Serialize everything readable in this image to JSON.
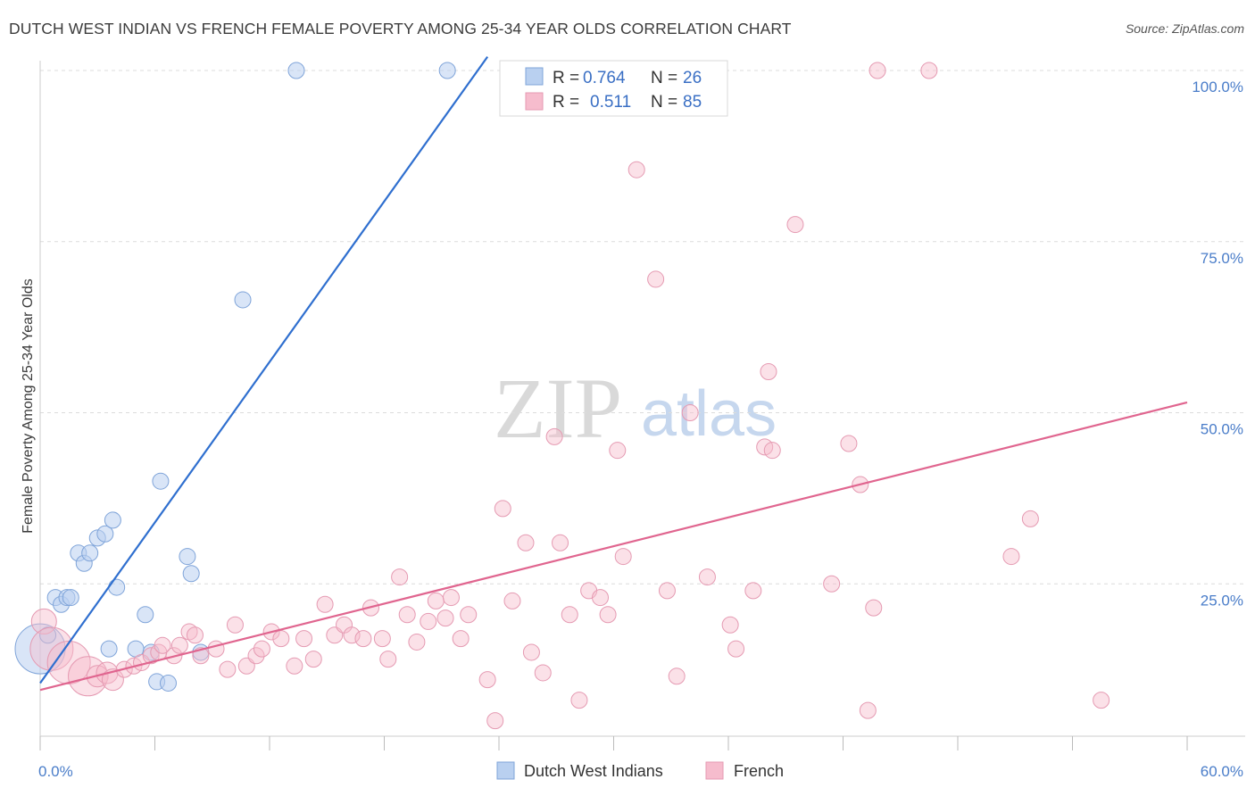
{
  "title": "DUTCH WEST INDIAN VS FRENCH FEMALE POVERTY AMONG 25-34 YEAR OLDS CORRELATION CHART",
  "source": "Source: ZipAtlas.com",
  "watermark": {
    "zip": "ZIP",
    "atlas": "atlas"
  },
  "colors": {
    "blue": "#4a7dc9",
    "blue_fill": "#b9d0f0",
    "pink": "#e0658f",
    "pink_fill": "#f6bccd",
    "grid": "#dddddd"
  },
  "legend": {
    "rows": [
      {
        "r_label": "R =",
        "r_value": "0.764",
        "n_label": "N =",
        "n_value": "26"
      },
      {
        "r_label": "R =",
        "r_value": "0.511",
        "n_label": "N =",
        "n_value": "85"
      }
    ]
  },
  "bottom_legend": [
    "Dutch West Indians",
    "French"
  ],
  "chart_data": {
    "type": "scatter",
    "title": "DUTCH WEST INDIAN VS FRENCH FEMALE POVERTY AMONG 25-34 YEAR OLDS CORRELATION CHART",
    "xlabel": "",
    "ylabel": "Female Poverty Among 25-34 Year Olds",
    "xlim": [
      0,
      60
    ],
    "ylim": [
      0,
      105
    ],
    "x_tick_labels": [
      "0.0%",
      "60.0%"
    ],
    "y_tick_labels": [
      "25.0%",
      "50.0%",
      "75.0%",
      "100.0%"
    ],
    "y_ticks": [
      25,
      50,
      75,
      100
    ],
    "grid": true,
    "legend_placement": "top-center",
    "series": [
      {
        "name": "Dutch West Indians",
        "color": "#4a7dc9",
        "trend": {
          "x": [
            0,
            23.4
          ],
          "y": [
            10.5,
            102
          ]
        },
        "points": [
          [
            0.0,
            15.5,
            28
          ],
          [
            0.4,
            17.5,
            9
          ],
          [
            0.8,
            23.0,
            9
          ],
          [
            1.1,
            22.0,
            9
          ],
          [
            1.4,
            23.0,
            9
          ],
          [
            1.6,
            23.0,
            9
          ],
          [
            2.0,
            29.5,
            9
          ],
          [
            2.3,
            28.0,
            9
          ],
          [
            2.6,
            29.5,
            9
          ],
          [
            3.0,
            31.7,
            9
          ],
          [
            3.4,
            32.3,
            9
          ],
          [
            3.8,
            34.3,
            9
          ],
          [
            4.0,
            24.5,
            9
          ],
          [
            3.6,
            15.5,
            9
          ],
          [
            5.0,
            15.5,
            9
          ],
          [
            5.5,
            20.5,
            9
          ],
          [
            5.8,
            15.0,
            9
          ],
          [
            6.1,
            10.7,
            9
          ],
          [
            6.3,
            40.0,
            9
          ],
          [
            6.7,
            10.5,
            9
          ],
          [
            7.7,
            29.0,
            9
          ],
          [
            7.9,
            26.5,
            9
          ],
          [
            8.4,
            15.0,
            9
          ],
          [
            10.6,
            66.5,
            9
          ],
          [
            13.4,
            100.0,
            9
          ],
          [
            21.3,
            100.0,
            9
          ]
        ]
      },
      {
        "name": "French",
        "color": "#e0658f",
        "trend": {
          "x": [
            0,
            60
          ],
          "y": [
            9.5,
            51.5
          ]
        },
        "points": [
          [
            0.2,
            19.5,
            14
          ],
          [
            0.6,
            15.5,
            24
          ],
          [
            1.5,
            13.5,
            24
          ],
          [
            2.5,
            11.5,
            22
          ],
          [
            3.0,
            11.5,
            12
          ],
          [
            3.5,
            12.0,
            12
          ],
          [
            3.8,
            11.0,
            12
          ],
          [
            4.4,
            12.5,
            9
          ],
          [
            4.9,
            13.0,
            9
          ],
          [
            5.3,
            13.5,
            9
          ],
          [
            5.8,
            14.5,
            9
          ],
          [
            6.2,
            15.0,
            9
          ],
          [
            6.4,
            16.0,
            9
          ],
          [
            7.0,
            14.5,
            9
          ],
          [
            7.3,
            16.0,
            9
          ],
          [
            7.8,
            18.0,
            9
          ],
          [
            8.1,
            17.5,
            9
          ],
          [
            8.4,
            14.5,
            9
          ],
          [
            9.2,
            15.5,
            9
          ],
          [
            9.8,
            12.5,
            9
          ],
          [
            10.2,
            19.0,
            9
          ],
          [
            10.8,
            13.0,
            9
          ],
          [
            11.3,
            14.5,
            9
          ],
          [
            11.6,
            15.5,
            9
          ],
          [
            12.1,
            18.0,
            9
          ],
          [
            12.6,
            17.0,
            9
          ],
          [
            13.3,
            13.0,
            9
          ],
          [
            13.8,
            17.0,
            9
          ],
          [
            14.3,
            14.0,
            9
          ],
          [
            14.9,
            22.0,
            9
          ],
          [
            15.4,
            17.5,
            9
          ],
          [
            15.9,
            19.0,
            9
          ],
          [
            16.3,
            17.5,
            9
          ],
          [
            16.9,
            17.0,
            9
          ],
          [
            17.3,
            21.5,
            9
          ],
          [
            17.9,
            17.0,
            9
          ],
          [
            18.2,
            14.0,
            9
          ],
          [
            18.8,
            26.0,
            9
          ],
          [
            19.2,
            20.5,
            9
          ],
          [
            19.7,
            16.5,
            9
          ],
          [
            20.3,
            19.5,
            9
          ],
          [
            20.7,
            22.5,
            9
          ],
          [
            21.2,
            20.0,
            9
          ],
          [
            21.5,
            23.0,
            9
          ],
          [
            22.0,
            17.0,
            9
          ],
          [
            22.4,
            20.5,
            9
          ],
          [
            23.4,
            11.0,
            9
          ],
          [
            23.8,
            5.0,
            9
          ],
          [
            24.2,
            36.0,
            9
          ],
          [
            24.7,
            22.5,
            9
          ],
          [
            25.4,
            31.0,
            9
          ],
          [
            25.7,
            15.0,
            9
          ],
          [
            26.3,
            12.0,
            9
          ],
          [
            27.2,
            31.0,
            9
          ],
          [
            26.9,
            46.5,
            9
          ],
          [
            27.7,
            20.5,
            9
          ],
          [
            28.2,
            8.0,
            9
          ],
          [
            28.7,
            24.0,
            9
          ],
          [
            29.3,
            23.0,
            9
          ],
          [
            29.7,
            20.5,
            9
          ],
          [
            30.2,
            44.5,
            9
          ],
          [
            30.5,
            29.0,
            9
          ],
          [
            31.2,
            85.5,
            9
          ],
          [
            32.2,
            69.5,
            9
          ],
          [
            32.8,
            24.0,
            9
          ],
          [
            33.3,
            11.5,
            9
          ],
          [
            34.0,
            50.0,
            9
          ],
          [
            34.9,
            26.0,
            9
          ],
          [
            36.1,
            19.0,
            9
          ],
          [
            36.4,
            15.5,
            9
          ],
          [
            37.3,
            24.0,
            9
          ],
          [
            37.9,
            45.0,
            9
          ],
          [
            38.1,
            56.0,
            9
          ],
          [
            38.3,
            44.5,
            9
          ],
          [
            39.5,
            77.5,
            9
          ],
          [
            41.4,
            25.0,
            9
          ],
          [
            42.3,
            45.5,
            9
          ],
          [
            42.9,
            39.5,
            9
          ],
          [
            43.3,
            6.5,
            9
          ],
          [
            43.6,
            21.5,
            9
          ],
          [
            43.8,
            100.0,
            9
          ],
          [
            46.5,
            100.0,
            9
          ],
          [
            50.8,
            29.0,
            9
          ],
          [
            51.8,
            34.5,
            9
          ],
          [
            55.5,
            8.0,
            9
          ]
        ]
      }
    ]
  }
}
